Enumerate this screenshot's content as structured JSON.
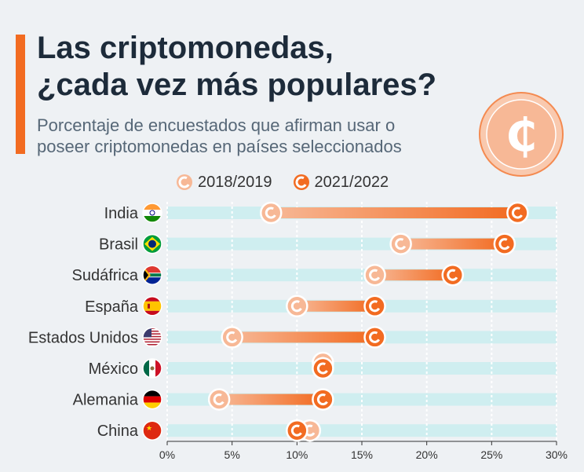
{
  "title_line1": "Las criptomonedas,",
  "title_line2": "¿cada vez más populares?",
  "subtitle_line1": "Porcentaje de encuestados que afirman usar o",
  "subtitle_line2": "poseer criptomonedas en países seleccionados",
  "colors": {
    "accent": "#f26b21",
    "light": "#f7b896",
    "track": "#cfeef0",
    "text": "#1d2b3a"
  },
  "chart_data": {
    "type": "dumbbell",
    "x_unit": "%",
    "xlim": [
      0,
      30
    ],
    "x_ticks": [
      0,
      5,
      10,
      15,
      20,
      25,
      30
    ],
    "x_tick_labels": [
      "0%",
      "5%",
      "10%",
      "15%",
      "20%",
      "25%",
      "30%"
    ],
    "legend": [
      "2018/2019",
      "2021/2022"
    ],
    "categories": [
      "India",
      "Brasil",
      "Sudáfrica",
      "España",
      "Estados Unidos",
      "México",
      "Alemania",
      "China"
    ],
    "flag_icons": [
      "india-flag-icon",
      "brazil-flag-icon",
      "south-africa-flag-icon",
      "spain-flag-icon",
      "usa-flag-icon",
      "mexico-flag-icon",
      "germany-flag-icon",
      "china-flag-icon"
    ],
    "series": [
      {
        "name": "2018/2019",
        "values": [
          8,
          18,
          16,
          10,
          5,
          12,
          4,
          11
        ]
      },
      {
        "name": "2021/2022",
        "values": [
          27,
          26,
          22,
          16,
          16,
          12,
          12,
          10
        ]
      }
    ]
  }
}
